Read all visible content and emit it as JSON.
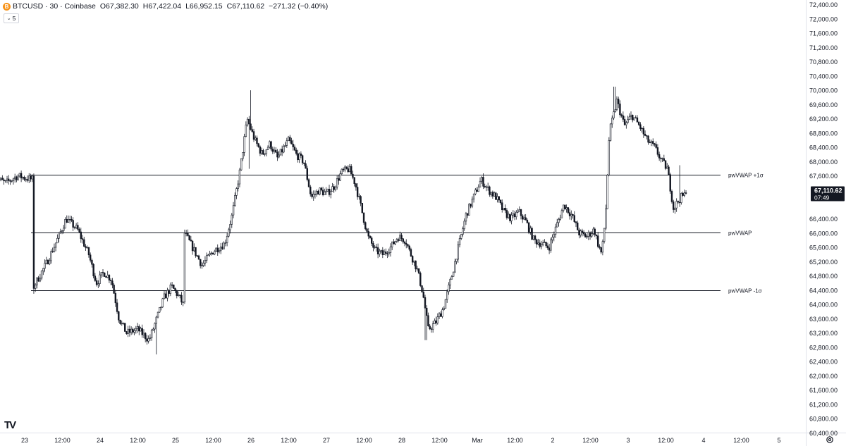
{
  "header": {
    "coin_glyph": "B",
    "symbol": "BTCUSD · 30 · Coinbase",
    "open": "O67,382.30",
    "high": "H67,422.04",
    "low": "L66,952.15",
    "close": "C67,110.62",
    "change": "−271.32 (−0.40%)"
  },
  "collapse_label": "5",
  "logo_text": "TV",
  "colors": {
    "candle": "#131722",
    "grid_text": "#131722",
    "last_price_bg": "#131722",
    "last_price_text": "#ffffff",
    "vwap_line": "#131722",
    "coin": "#f7931a"
  },
  "chart_data": {
    "type": "candlestick",
    "symbol": "BTCUSD",
    "interval": "30",
    "exchange": "Coinbase",
    "y_ticks": [
      60400,
      60800,
      61200,
      61600,
      62000,
      62400,
      62800,
      63200,
      63600,
      64000,
      64400,
      64800,
      65200,
      65600,
      66000,
      66400,
      66800,
      67200,
      67600,
      68000,
      68400,
      68800,
      69200,
      69600,
      70000,
      70400,
      70800,
      71200,
      71600,
      72000,
      72400
    ],
    "y_range": [
      60200,
      72600
    ],
    "x_labels": [
      "23",
      "12:00",
      "24",
      "12:00",
      "25",
      "12:00",
      "26",
      "12:00",
      "27",
      "12:00",
      "28",
      "12:00",
      "Mar",
      "12:00",
      "2",
      "12:00",
      "3",
      "12:00",
      "4",
      "12:00",
      "5"
    ],
    "x_range_days": [
      0,
      10.2
    ],
    "last_price": "67,110.62",
    "countdown": "07:49",
    "vwap_levels": [
      {
        "name": "pwVWAP +1σ",
        "value": 67630
      },
      {
        "name": "pwVWAP",
        "value": 66020
      },
      {
        "name": "pwVWAP -1σ",
        "value": 64400
      }
    ],
    "path_keypoints": [
      [
        -0.4,
        67550
      ],
      [
        -0.25,
        67400
      ],
      [
        -0.1,
        67600
      ],
      [
        0.1,
        67500
      ],
      [
        0.12,
        64500
      ],
      [
        0.3,
        65200
      ],
      [
        0.45,
        65900
      ],
      [
        0.55,
        66400
      ],
      [
        0.7,
        66100
      ],
      [
        0.85,
        65400
      ],
      [
        0.95,
        64600
      ],
      [
        1.05,
        64900
      ],
      [
        1.15,
        64700
      ],
      [
        1.25,
        63600
      ],
      [
        1.35,
        63200
      ],
      [
        1.5,
        63300
      ],
      [
        1.65,
        63000
      ],
      [
        1.75,
        63600
      ],
      [
        1.85,
        64200
      ],
      [
        1.95,
        64500
      ],
      [
        2.05,
        64200
      ],
      [
        2.1,
        64000
      ],
      [
        2.12,
        66000
      ],
      [
        2.25,
        65500
      ],
      [
        2.35,
        65100
      ],
      [
        2.5,
        65500
      ],
      [
        2.65,
        65700
      ],
      [
        2.75,
        66500
      ],
      [
        2.85,
        67700
      ],
      [
        2.95,
        69200
      ],
      [
        3.05,
        68600
      ],
      [
        3.15,
        68200
      ],
      [
        3.25,
        68500
      ],
      [
        3.35,
        68100
      ],
      [
        3.5,
        68600
      ],
      [
        3.6,
        68200
      ],
      [
        3.7,
        68000
      ],
      [
        3.8,
        67000
      ],
      [
        3.9,
        67200
      ],
      [
        4.0,
        67100
      ],
      [
        4.1,
        67300
      ],
      [
        4.2,
        67700
      ],
      [
        4.3,
        67800
      ],
      [
        4.38,
        67400
      ],
      [
        4.45,
        66800
      ],
      [
        4.55,
        65900
      ],
      [
        4.65,
        65500
      ],
      [
        4.75,
        65400
      ],
      [
        4.85,
        65600
      ],
      [
        4.95,
        65900
      ],
      [
        5.05,
        65800
      ],
      [
        5.1,
        65500
      ],
      [
        5.2,
        65000
      ],
      [
        5.28,
        64300
      ],
      [
        5.35,
        63300
      ],
      [
        5.45,
        63500
      ],
      [
        5.55,
        63900
      ],
      [
        5.65,
        64700
      ],
      [
        5.75,
        65600
      ],
      [
        5.85,
        66500
      ],
      [
        5.95,
        67000
      ],
      [
        6.05,
        67500
      ],
      [
        6.15,
        67200
      ],
      [
        6.25,
        67000
      ],
      [
        6.35,
        66600
      ],
      [
        6.45,
        66400
      ],
      [
        6.55,
        66600
      ],
      [
        6.65,
        66300
      ],
      [
        6.75,
        65800
      ],
      [
        6.85,
        65700
      ],
      [
        6.95,
        65600
      ],
      [
        7.05,
        66200
      ],
      [
        7.15,
        66800
      ],
      [
        7.25,
        66500
      ],
      [
        7.35,
        66000
      ],
      [
        7.45,
        65900
      ],
      [
        7.55,
        66100
      ],
      [
        7.6,
        65700
      ],
      [
        7.65,
        65400
      ],
      [
        7.7,
        66500
      ],
      [
        7.75,
        68800
      ],
      [
        7.85,
        69700
      ],
      [
        7.95,
        69000
      ],
      [
        8.05,
        69300
      ],
      [
        8.15,
        69000
      ],
      [
        8.25,
        68600
      ],
      [
        8.35,
        68400
      ],
      [
        8.45,
        68000
      ],
      [
        8.52,
        67800
      ],
      [
        8.6,
        66700
      ],
      [
        8.7,
        67000
      ],
      [
        8.78,
        67110
      ]
    ],
    "spikes": [
      [
        0.12,
        64300
      ],
      [
        1.75,
        62600
      ],
      [
        3.0,
        70000
      ],
      [
        5.32,
        63000
      ],
      [
        7.82,
        70100
      ],
      [
        8.68,
        67900
      ],
      [
        2.98,
        67800
      ]
    ]
  }
}
